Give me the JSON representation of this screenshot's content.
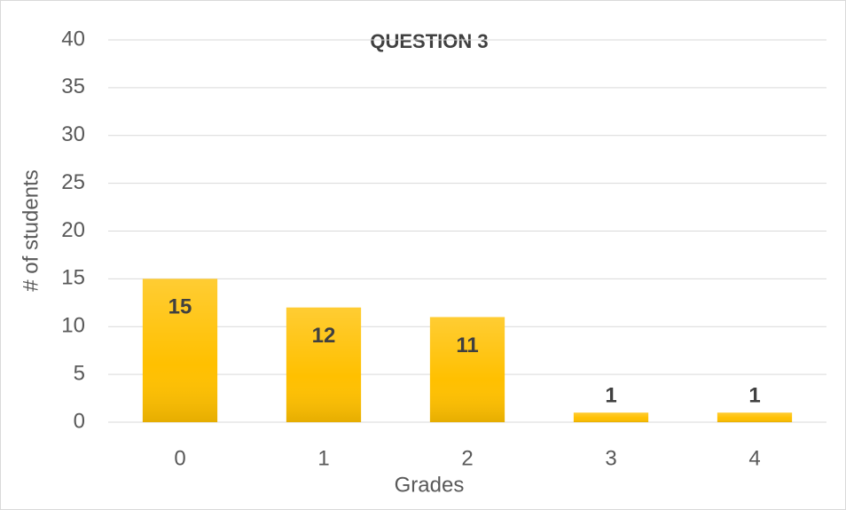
{
  "chart_data": {
    "type": "bar",
    "title": "QUESTION 3",
    "x_label": "Grades",
    "y_label": "# of students",
    "categories": [
      "0",
      "1",
      "2",
      "3",
      "4"
    ],
    "values": [
      15,
      12,
      11,
      1,
      1
    ],
    "color": "#ffc000",
    "ylim": [
      0,
      40
    ],
    "yticks": [
      0,
      5,
      10,
      15,
      20,
      25,
      30,
      35,
      40
    ],
    "grid": true
  }
}
